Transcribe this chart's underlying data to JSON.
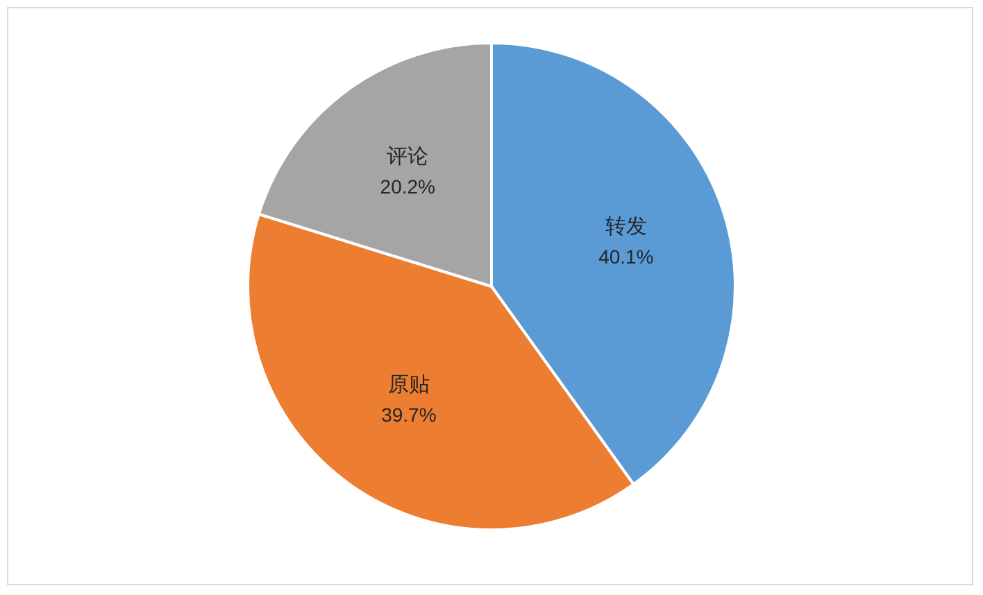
{
  "chart_data": {
    "type": "pie",
    "categories": [
      "转发",
      "原贴",
      "评论"
    ],
    "values": [
      40.1,
      39.7,
      20.2
    ],
    "colors": [
      "#5b9bd5",
      "#ed7d31",
      "#a5a5a5"
    ],
    "value_labels": [
      "40.1%",
      "39.7%",
      "20.2%"
    ],
    "legend": false
  }
}
